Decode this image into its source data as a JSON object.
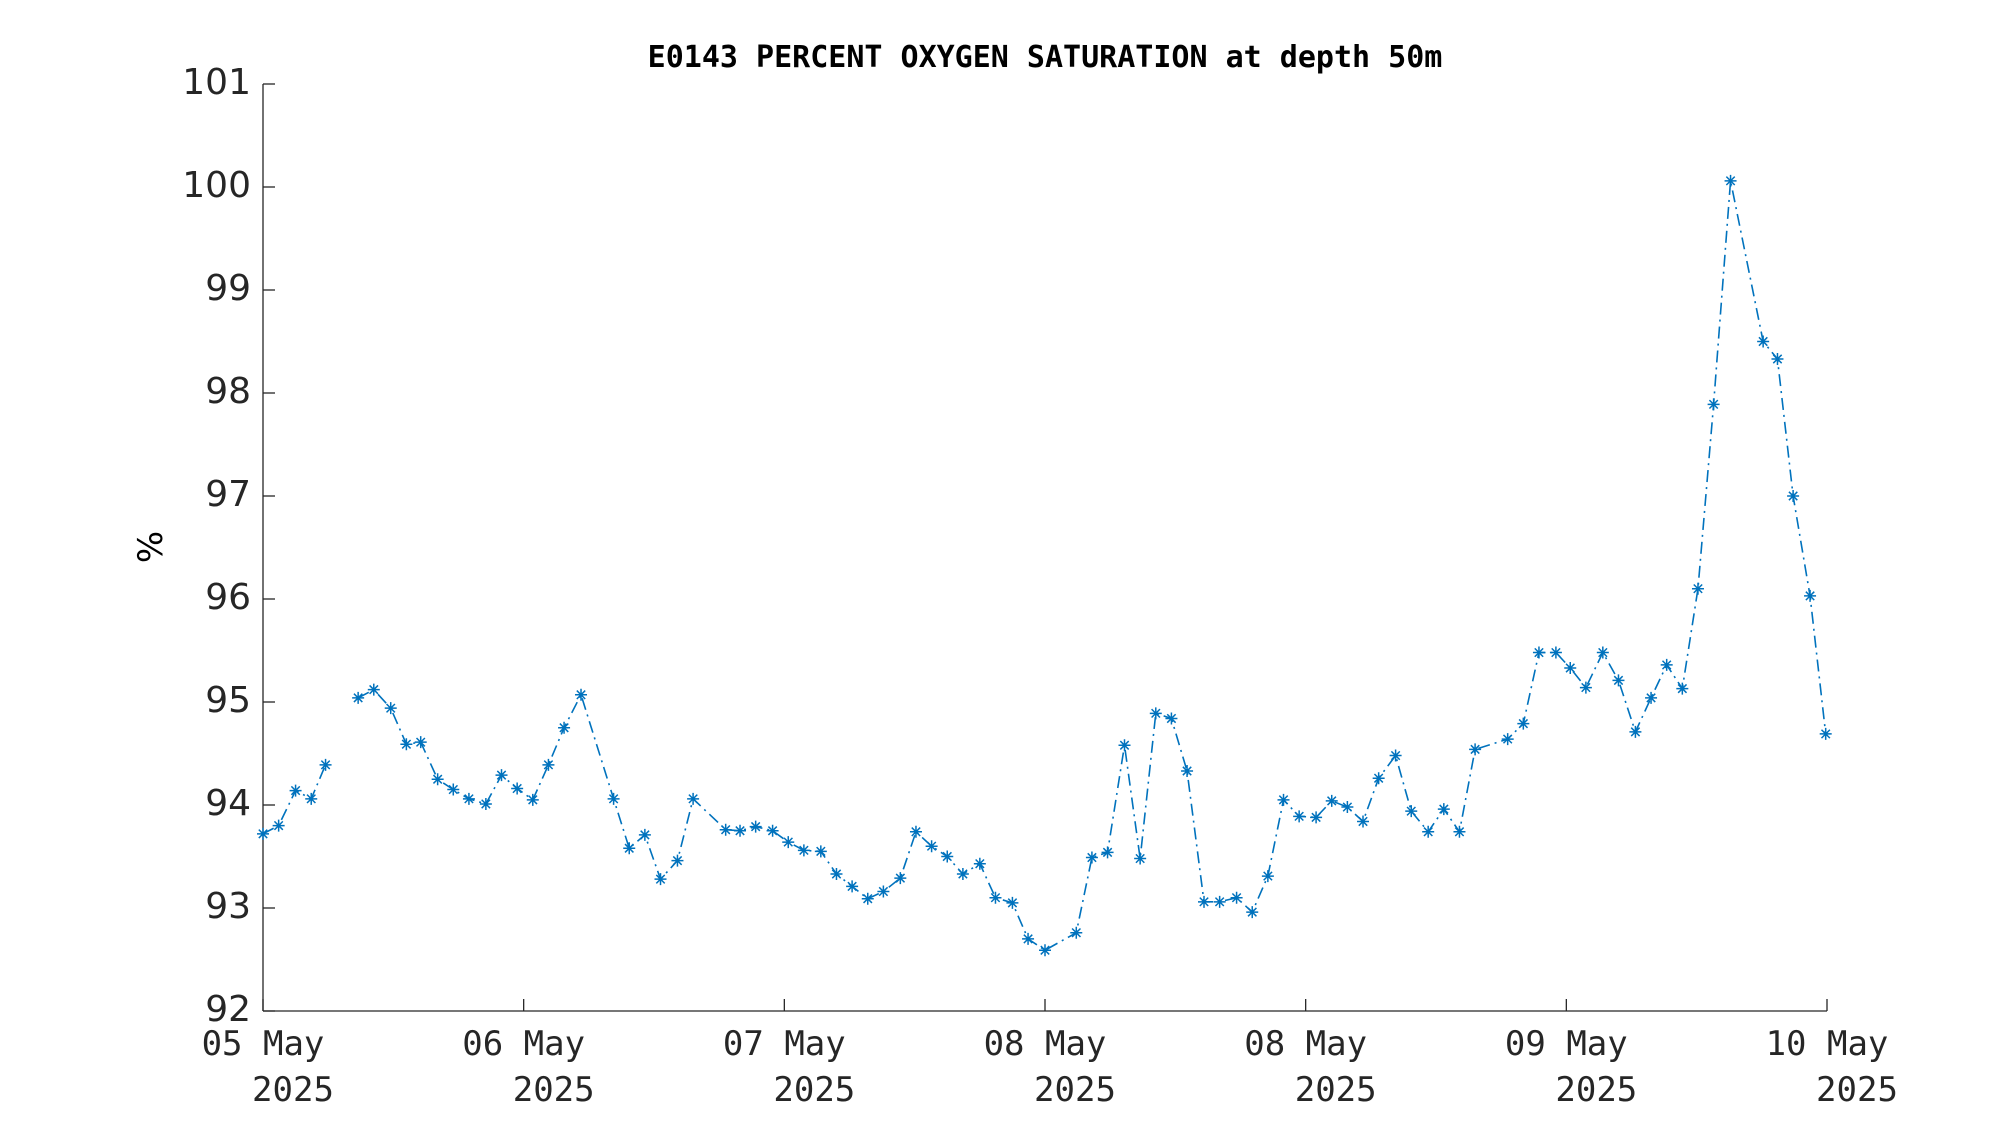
{
  "chart_data": {
    "type": "line",
    "title": "E0143 PERCENT OXYGEN SATURATION at depth 50m",
    "ylabel": "%",
    "color": "#0072bd",
    "line_style": "dash-dot",
    "marker": "asterisk",
    "x": [
      0,
      1.2,
      2.5,
      3.7,
      4.8,
      6.1,
      7.3,
      8.5,
      9.8,
      11.0,
      12.1,
      13.4,
      14.6,
      15.8,
      17.1,
      18.3,
      19.5,
      20.7,
      21.9,
      23.1,
      24.4,
      26.9,
      28.1,
      29.3,
      30.5,
      31.8,
      33.0,
      35.5,
      36.6,
      37.8,
      39.1,
      40.3,
      41.5,
      42.8,
      44.0,
      45.2,
      46.4,
      47.6,
      48.9,
      50.1,
      51.3,
      52.5,
      53.7,
      55.0,
      56.2,
      57.5,
      58.7,
      60.0,
      62.4,
      63.6,
      64.8,
      66.1,
      67.3,
      68.5,
      69.7,
      70.9,
      72.2,
      73.4,
      74.7,
      75.9,
      77.1,
      78.3,
      79.5,
      80.8,
      82.0,
      83.2,
      84.4,
      85.6,
      86.9,
      88.1,
      89.4,
      90.6,
      91.8,
      93.0,
      95.5,
      96.7,
      97.9,
      99.2,
      100.3,
      101.5,
      102.8,
      104.0,
      105.3,
      106.5,
      107.7,
      108.9,
      110.1,
      111.3,
      112.6,
      115.1,
      116.2,
      117.4,
      118.7,
      119.9
    ],
    "values": [
      93.72,
      93.8,
      94.14,
      94.06,
      94.39,
      null,
      95.04,
      95.12,
      94.94,
      94.59,
      94.61,
      94.25,
      94.15,
      94.06,
      94.01,
      94.29,
      94.16,
      94.05,
      94.39,
      94.75,
      95.07,
      94.06,
      93.58,
      93.71,
      93.28,
      93.46,
      94.06,
      93.76,
      93.75,
      93.79,
      93.75,
      93.64,
      93.56,
      93.55,
      93.33,
      93.21,
      93.09,
      93.16,
      93.29,
      93.74,
      93.6,
      93.5,
      93.33,
      93.43,
      93.1,
      93.05,
      92.7,
      92.59,
      92.76,
      93.49,
      93.54,
      94.58,
      93.48,
      94.89,
      94.84,
      94.33,
      93.06,
      93.06,
      93.1,
      92.96,
      93.31,
      94.05,
      93.89,
      93.88,
      94.04,
      93.98,
      93.84,
      94.26,
      94.48,
      93.94,
      93.74,
      93.96,
      93.74,
      94.54,
      94.64,
      94.79,
      95.48,
      95.48,
      95.33,
      95.14,
      95.48,
      95.21,
      94.71,
      95.04,
      95.36,
      95.13,
      96.1,
      97.89,
      100.06,
      98.5,
      98.33,
      97.0,
      96.03,
      94.69
    ],
    "xlim": [
      0,
      120
    ],
    "xticks": [
      {
        "value": 0,
        "label": "05 May 2025"
      },
      {
        "value": 20,
        "label": "06 May 2025"
      },
      {
        "value": 40,
        "label": "07 May 2025"
      },
      {
        "value": 60,
        "label": "08 May 2025"
      },
      {
        "value": 80,
        "label": "08 May 2025"
      },
      {
        "value": 100,
        "label": "09 May 2025"
      },
      {
        "value": 120,
        "label": "10 May 2025"
      }
    ],
    "ylim": [
      92,
      101
    ],
    "yticks": [
      92,
      93,
      94,
      95,
      96,
      97,
      98,
      99,
      100,
      101
    ],
    "grid": false
  }
}
